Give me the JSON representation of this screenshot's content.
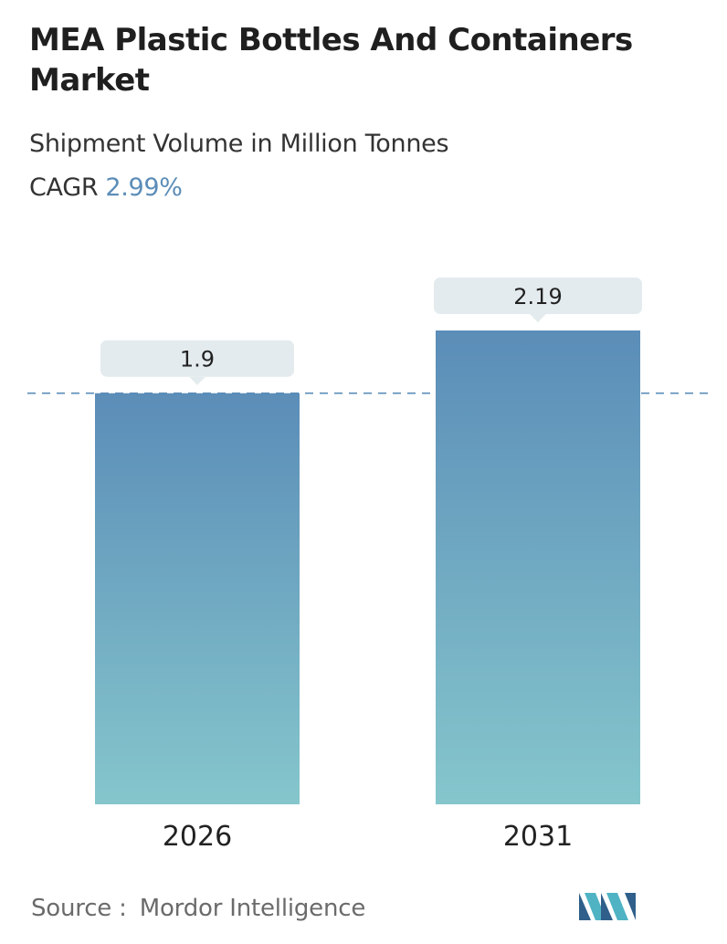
{
  "title": "MEA Plastic Bottles And Containers Market",
  "subtitle": "Shipment Volume in Million Tonnes",
  "cagr": {
    "label": "CAGR",
    "value": "2.99%"
  },
  "source": {
    "label": "Source :",
    "value": "Mordor Intelligence"
  },
  "colors": {
    "bar_top": "#5b8db8",
    "bar_bottom": "#85c6cc",
    "label_box": "#e4ebee",
    "reference_line": "#5b8db8",
    "accent": "#5b8db8"
  },
  "logo_icon": "mordor-intelligence-logo-icon",
  "chart_data": {
    "type": "bar",
    "categories": [
      "2026",
      "2031"
    ],
    "values": [
      1.9,
      2.19
    ],
    "data_labels": [
      "1.9",
      "2.19"
    ],
    "title": "MEA Plastic Bottles And Containers Market",
    "subtitle": "Shipment Volume in Million Tonnes",
    "ylabel": "",
    "xlabel": "",
    "ylim": [
      0,
      2.19
    ],
    "grid": false,
    "reference_line": {
      "value": 1.9,
      "style": "dashed"
    }
  }
}
